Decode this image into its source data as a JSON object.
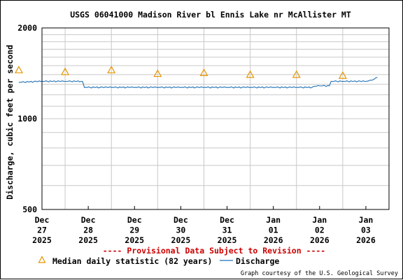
{
  "chart_data": {
    "type": "line",
    "title": "USGS 06041000 Madison River bl Ennis Lake nr McAllister MT",
    "ylabel": "Discharge, cubic feet per second",
    "y_scale": "log",
    "ylim": [
      500,
      2000
    ],
    "y_ticks": [
      500,
      1000,
      2000
    ],
    "x_range": [
      "2025-12-27T00:00",
      "2026-01-03T12:00"
    ],
    "x_ticks": [
      {
        "date": "2025-12-27T00:00",
        "label": [
          "Dec",
          "27",
          "2025"
        ]
      },
      {
        "date": "2025-12-28T00:00",
        "label": [
          "Dec",
          "28",
          "2025"
        ]
      },
      {
        "date": "2025-12-29T00:00",
        "label": [
          "Dec",
          "29",
          "2025"
        ]
      },
      {
        "date": "2025-12-30T00:00",
        "label": [
          "Dec",
          "30",
          "2025"
        ]
      },
      {
        "date": "2025-12-31T00:00",
        "label": [
          "Dec",
          "31",
          "2025"
        ]
      },
      {
        "date": "2026-01-01T00:00",
        "label": [
          "Jan",
          "01",
          "2026"
        ]
      },
      {
        "date": "2026-01-02T00:00",
        "label": [
          "Jan",
          "02",
          "2026"
        ]
      },
      {
        "date": "2026-01-03T00:00",
        "label": [
          "Jan",
          "03",
          "2026"
        ]
      }
    ],
    "grid": true,
    "series": [
      {
        "name": "Discharge",
        "color": "#1f6fb5",
        "style": "line",
        "x": [
          "2025-12-26T12:00",
          "2025-12-27T00:00",
          "2025-12-27T12:00",
          "2025-12-27T21:00",
          "2025-12-27T22:00",
          "2025-12-28T12:00",
          "2025-12-29T00:00",
          "2025-12-29T12:00",
          "2025-12-30T00:00",
          "2025-12-30T12:00",
          "2025-12-31T00:00",
          "2025-12-31T12:00",
          "2026-01-01T00:00",
          "2026-01-01T12:00",
          "2026-01-01T20:00",
          "2026-01-01T21:00",
          "2026-01-02T00:00",
          "2026-01-02T05:00",
          "2026-01-02T06:00",
          "2026-01-02T12:00",
          "2026-01-03T00:00",
          "2026-01-03T03:00",
          "2026-01-03T06:00"
        ],
        "values": [
          1320,
          1330,
          1330,
          1330,
          1270,
          1270,
          1270,
          1270,
          1270,
          1270,
          1270,
          1270,
          1270,
          1270,
          1270,
          1280,
          1285,
          1285,
          1330,
          1330,
          1330,
          1340,
          1370
        ]
      },
      {
        "name": "Median daily statistic (82 years)",
        "color": "#e69500",
        "style": "triangle",
        "x": [
          "2025-12-26T12:00",
          "2025-12-27T12:00",
          "2025-12-28T12:00",
          "2025-12-29T12:00",
          "2025-12-30T12:00",
          "2025-12-31T12:00",
          "2026-01-01T12:00",
          "2026-01-02T12:00"
        ],
        "values": [
          1450,
          1430,
          1450,
          1410,
          1420,
          1400,
          1400,
          1390
        ]
      }
    ]
  },
  "notice": "---- Provisional Data Subject to Revision ----",
  "legend": {
    "median_label": "Median daily statistic (82 years)",
    "discharge_label": "Discharge"
  },
  "credit": "Graph courtesy of the U.S. Geological Survey",
  "colors": {
    "discharge": "#1f6fb5",
    "median": "#e69500",
    "notice": "#cc0000",
    "grid": "#c8c8c8"
  }
}
